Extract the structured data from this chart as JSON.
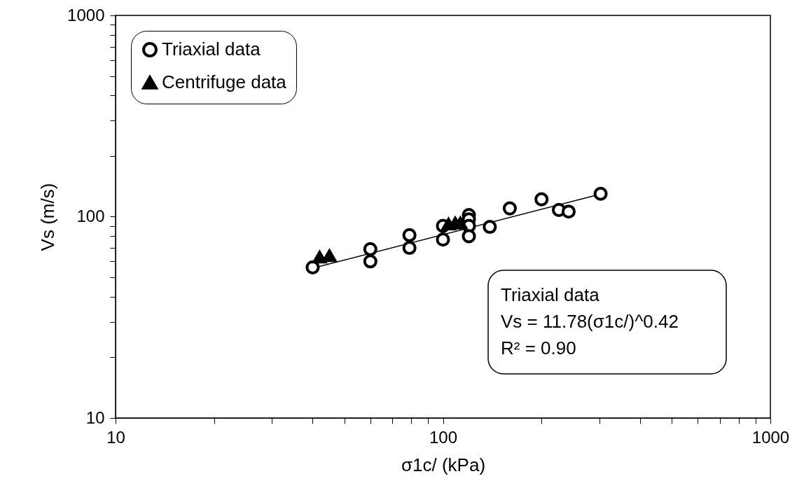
{
  "chart_data": {
    "type": "scatter",
    "xlabel": "σ1c/ (kPa)",
    "ylabel": "Vs (m/s)",
    "xlim": [
      10,
      1000
    ],
    "ylim": [
      10,
      1000
    ],
    "log": "xy",
    "grid": false,
    "legend": "top left",
    "xticks": [
      10,
      {
        "value": 20,
        "label": null
      },
      {
        "value": 30,
        "label": null
      },
      {
        "value": 40,
        "label": null
      },
      {
        "value": 50,
        "label": null
      },
      {
        "value": 60,
        "label": null
      },
      {
        "value": 70,
        "label": null
      },
      {
        "value": 80,
        "label": null
      },
      {
        "value": 90,
        "label": null
      },
      100,
      {
        "value": 200,
        "label": null
      },
      {
        "value": 300,
        "label": null
      },
      {
        "value": 400,
        "label": null
      },
      {
        "value": 500,
        "label": null
      },
      {
        "value": 600,
        "label": null
      },
      {
        "value": 700,
        "label": null
      },
      {
        "value": 800,
        "label": null
      },
      {
        "value": 900,
        "label": null
      },
      1000
    ],
    "yticks": [
      10,
      {
        "value": 20,
        "label": null
      },
      {
        "value": 30,
        "label": null
      },
      {
        "value": 40,
        "label": null
      },
      {
        "value": 50,
        "label": null
      },
      {
        "value": 60,
        "label": null
      },
      {
        "value": 70,
        "label": null
      },
      {
        "value": 80,
        "label": null
      },
      {
        "value": 90,
        "label": null
      },
      100,
      {
        "value": 200,
        "label": null
      },
      {
        "value": 300,
        "label": null
      },
      {
        "value": 400,
        "label": null
      },
      {
        "value": 500,
        "label": null
      },
      {
        "value": 600,
        "label": null
      },
      {
        "value": 700,
        "label": null
      },
      {
        "value": 800,
        "label": null
      },
      {
        "value": 900,
        "label": null
      },
      1000
    ],
    "series": [
      {
        "name": "Triaxial data",
        "marker": "circle",
        "color": "#000000",
        "x": [
          40,
          60,
          60,
          79,
          79,
          100,
          100,
          120,
          120,
          120,
          120,
          139,
          160,
          200,
          226,
          242,
          303
        ],
        "values": [
          56,
          69,
          60,
          81,
          70,
          90,
          77,
          102,
          97,
          90,
          80,
          89,
          110,
          122,
          108,
          106,
          130
        ]
      },
      {
        "name": "Centrifuge data",
        "marker": "triangle",
        "color": "#000000",
        "x": [
          42,
          45,
          104,
          109,
          113
        ],
        "values": [
          63,
          64,
          92,
          93,
          93
        ]
      },
      {
        "type": "line",
        "color": "#000000",
        "x": [
          40,
          303
        ],
        "values": [
          55.5,
          129.5
        ]
      }
    ],
    "annotations": [
      "Triaxial data",
      "Vs = 11.78(σ1c/)^0.42",
      "R² = 0.90"
    ]
  }
}
